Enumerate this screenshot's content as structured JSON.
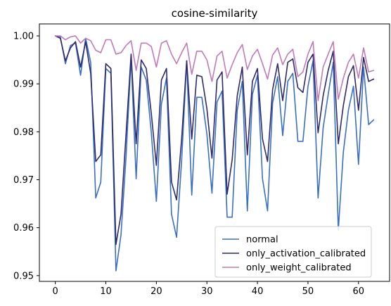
{
  "chart_data": {
    "type": "line",
    "title": "cosine-similarity",
    "xlabel": "",
    "ylabel": "",
    "xlim": [
      -3.15,
      66.15
    ],
    "ylim": [
      0.9488,
      1.0025
    ],
    "xticks": [
      0,
      10,
      20,
      30,
      40,
      50,
      60
    ],
    "yticks": [
      0.95,
      0.96,
      0.97,
      0.98,
      0.99,
      1.0
    ],
    "ytick_labels": [
      "0.95",
      "0.96",
      "0.97",
      "0.98",
      "0.99",
      "1.00"
    ],
    "grid": false,
    "legend_position": "lower-right",
    "x": [
      0,
      1,
      2,
      3,
      4,
      5,
      6,
      7,
      8,
      9,
      10,
      11,
      12,
      13,
      14,
      15,
      16,
      17,
      18,
      19,
      20,
      21,
      22,
      23,
      24,
      25,
      26,
      27,
      28,
      29,
      30,
      31,
      32,
      33,
      34,
      35,
      36,
      37,
      38,
      39,
      40,
      41,
      42,
      43,
      44,
      45,
      46,
      47,
      48,
      49,
      50,
      51,
      52,
      53,
      54,
      55,
      56,
      57,
      58,
      59,
      60,
      61,
      62,
      63
    ],
    "series": [
      {
        "name": "normal",
        "color": "#3a6fc7",
        "values": [
          1.0,
          0.9998,
          0.9942,
          0.998,
          0.9985,
          0.9918,
          0.9995,
          0.9945,
          0.9662,
          0.9695,
          0.9932,
          0.9922,
          0.951,
          0.9585,
          0.9748,
          0.9955,
          0.9702,
          0.9935,
          0.9908,
          0.9798,
          0.9655,
          0.9858,
          0.9912,
          0.9628,
          0.958,
          0.974,
          0.9948,
          0.9668,
          0.9872,
          0.9872,
          0.9795,
          0.9672,
          0.9862,
          0.9885,
          0.9622,
          0.9622,
          0.9845,
          0.9905,
          0.9635,
          0.9878,
          0.9918,
          0.9702,
          0.9635,
          0.986,
          0.9915,
          0.9792,
          0.9905,
          0.9922,
          0.978,
          0.978,
          0.9895,
          0.9948,
          0.9662,
          0.9808,
          0.9878,
          0.9945,
          0.9595,
          0.9758,
          0.9845,
          0.9895,
          0.9732,
          0.9935,
          0.9815,
          0.9825
        ]
      },
      {
        "name": "only_activation_calibrated",
        "color": "#2e2a6e",
        "values": [
          1.0,
          0.9995,
          0.9948,
          0.9975,
          0.9988,
          0.9935,
          0.9988,
          0.9922,
          0.9738,
          0.9752,
          0.9942,
          0.9932,
          0.9565,
          0.9628,
          0.9795,
          0.9962,
          0.9775,
          0.995,
          0.9932,
          0.9838,
          0.973,
          0.9908,
          0.9932,
          0.9695,
          0.9658,
          0.9785,
          0.9948,
          0.9785,
          0.9918,
          0.9915,
          0.9848,
          0.9745,
          0.9908,
          0.9925,
          0.967,
          0.9742,
          0.9875,
          0.9935,
          0.9752,
          0.9905,
          0.9932,
          0.9785,
          0.9738,
          0.9888,
          0.9942,
          0.9865,
          0.9945,
          0.9952,
          0.9892,
          0.9882,
          0.9945,
          0.9962,
          0.9798,
          0.9875,
          0.9928,
          0.9968,
          0.9775,
          0.9855,
          0.9915,
          0.9938,
          0.9845,
          0.9955,
          0.9905,
          0.991
        ]
      },
      {
        "name": "only_weight_calibrated",
        "color": "#c07ab8",
        "values": [
          1.0,
          1.0,
          0.9992,
          0.9998,
          1.0,
          0.9985,
          0.9995,
          0.999,
          0.997,
          0.9965,
          0.9992,
          0.9992,
          0.9962,
          0.9965,
          0.998,
          0.999,
          0.9928,
          0.9985,
          0.9985,
          0.9978,
          0.9935,
          0.9985,
          0.999,
          0.9962,
          0.9942,
          0.9965,
          0.9985,
          0.992,
          0.9968,
          0.9968,
          0.995,
          0.9905,
          0.9958,
          0.9968,
          0.9912,
          0.994,
          0.9965,
          0.9982,
          0.993,
          0.9958,
          0.9972,
          0.9942,
          0.991,
          0.996,
          0.9975,
          0.994,
          0.9962,
          0.9972,
          0.9915,
          0.9925,
          0.9962,
          0.9988,
          0.9865,
          0.9935,
          0.9962,
          0.9988,
          0.9868,
          0.9912,
          0.9945,
          0.9962,
          0.9912,
          0.9975,
          0.9925,
          0.9928
        ]
      }
    ]
  }
}
